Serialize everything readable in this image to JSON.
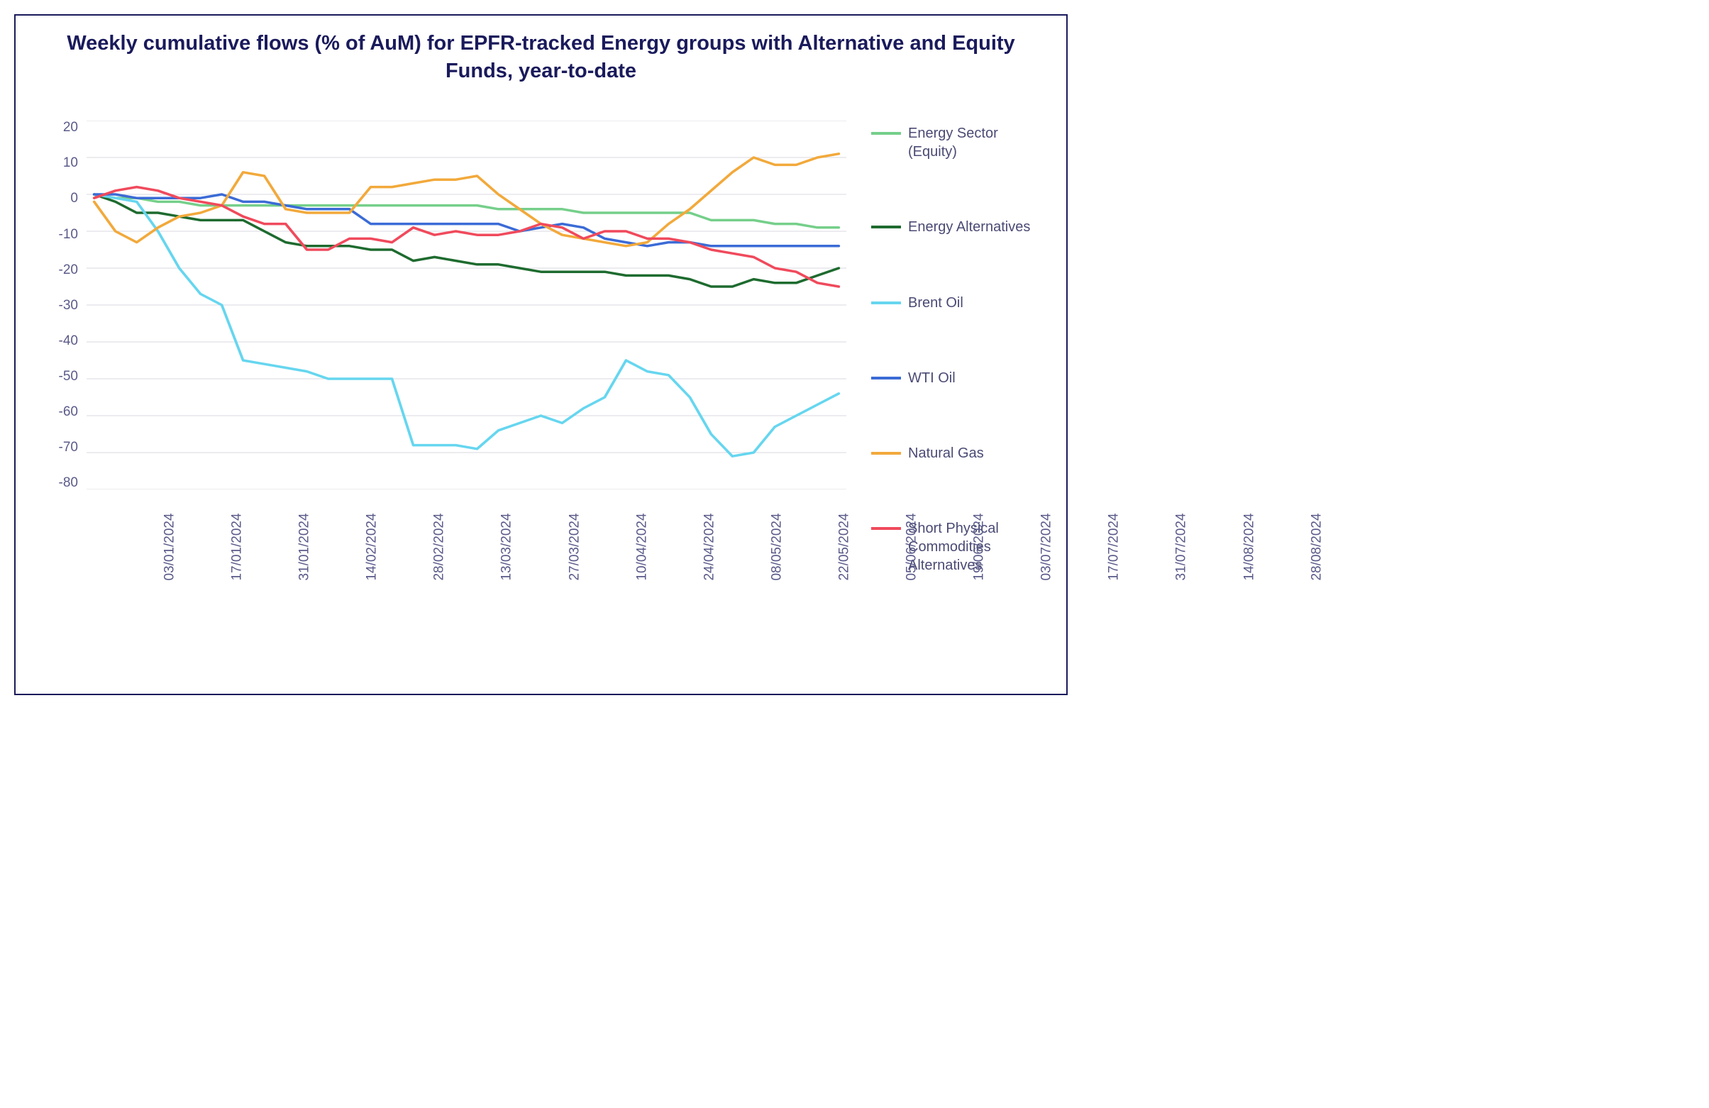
{
  "chart": {
    "type": "line",
    "title": "Weekly cumulative flows (% of AuM) for EPFR-tracked Energy groups with Alternative and Equity Funds, year-to-date",
    "title_color": "#1a1a5c",
    "title_fontsize": 29,
    "border_color": "#1a1a5c",
    "background_color": "#ffffff",
    "grid_color": "#d8d8e0",
    "axis_label_color": "#5a5a8a",
    "axis_fontsize": 19,
    "legend_fontsize": 20,
    "legend_text_color": "#4a4a75",
    "line_width": 3.5,
    "ylim": [
      -80,
      20
    ],
    "ytick_step": 10,
    "yticks": [
      20,
      10,
      0,
      -10,
      -20,
      -30,
      -40,
      -50,
      -60,
      -70,
      -80
    ],
    "x_labels": [
      "03/01/2024",
      "17/01/2024",
      "31/01/2024",
      "14/02/2024",
      "28/02/2024",
      "13/03/2024",
      "27/03/2024",
      "10/04/2024",
      "24/04/2024",
      "08/05/2024",
      "22/05/2024",
      "05/06/2024",
      "19/06/2024",
      "03/07/2024",
      "17/07/2024",
      "31/07/2024",
      "14/08/2024",
      "28/08/2024"
    ],
    "x_count": 36,
    "series": [
      {
        "name": "Energy Sector (Equity)",
        "color": "#75cf8a",
        "values": [
          0,
          -1,
          -1,
          -2,
          -2,
          -3,
          -3,
          -3,
          -3,
          -3,
          -3,
          -3,
          -3,
          -3,
          -3,
          -3,
          -3,
          -3,
          -3,
          -4,
          -4,
          -4,
          -4,
          -5,
          -5,
          -5,
          -5,
          -5,
          -5,
          -7,
          -7,
          -7,
          -8,
          -8,
          -9,
          -9
        ]
      },
      {
        "name": "Energy Alternatives",
        "color": "#1e6b2f",
        "values": [
          0,
          -2,
          -5,
          -5,
          -6,
          -7,
          -7,
          -7,
          -10,
          -13,
          -14,
          -14,
          -14,
          -15,
          -15,
          -18,
          -17,
          -18,
          -19,
          -19,
          -20,
          -21,
          -21,
          -21,
          -21,
          -22,
          -22,
          -22,
          -23,
          -25,
          -25,
          -23,
          -24,
          -24,
          -22,
          -20
        ]
      },
      {
        "name": "Brent Oil",
        "color": "#66d6ef",
        "values": [
          0,
          -1,
          -2,
          -10,
          -20,
          -27,
          -30,
          -45,
          -46,
          -47,
          -48,
          -50,
          -50,
          -50,
          -50,
          -68,
          -68,
          -68,
          -69,
          -64,
          -62,
          -60,
          -62,
          -58,
          -55,
          -45,
          -48,
          -49,
          -55,
          -65,
          -71,
          -70,
          -63,
          -60,
          -57,
          -54
        ]
      },
      {
        "name": "WTI Oil",
        "color": "#3b6bd6",
        "values": [
          0,
          0,
          -1,
          -1,
          -1,
          -1,
          0,
          -2,
          -2,
          -3,
          -4,
          -4,
          -4,
          -8,
          -8,
          -8,
          -8,
          -8,
          -8,
          -8,
          -10,
          -9,
          -8,
          -9,
          -12,
          -13,
          -14,
          -13,
          -13,
          -14,
          -14,
          -14,
          -14,
          -14,
          -14,
          -14
        ]
      },
      {
        "name": "Natural Gas",
        "color": "#f2a93b",
        "values": [
          -2,
          -10,
          -13,
          -9,
          -6,
          -5,
          -3,
          6,
          5,
          -4,
          -5,
          -5,
          -5,
          2,
          2,
          3,
          4,
          4,
          5,
          0,
          -4,
          -8,
          -11,
          -12,
          -13,
          -14,
          -13,
          -8,
          -4,
          1,
          6,
          10,
          8,
          8,
          10,
          11
        ]
      },
      {
        "name": "Short Physical Commodities Alternatives",
        "color": "#f04a5c",
        "values": [
          -1,
          1,
          2,
          1,
          -1,
          -2,
          -3,
          -6,
          -8,
          -8,
          -15,
          -15,
          -12,
          -12,
          -13,
          -9,
          -11,
          -10,
          -11,
          -11,
          -10,
          -8,
          -9,
          -12,
          -10,
          -10,
          -12,
          -12,
          -13,
          -15,
          -16,
          -17,
          -20,
          -21,
          -24,
          -25
        ]
      }
    ]
  }
}
